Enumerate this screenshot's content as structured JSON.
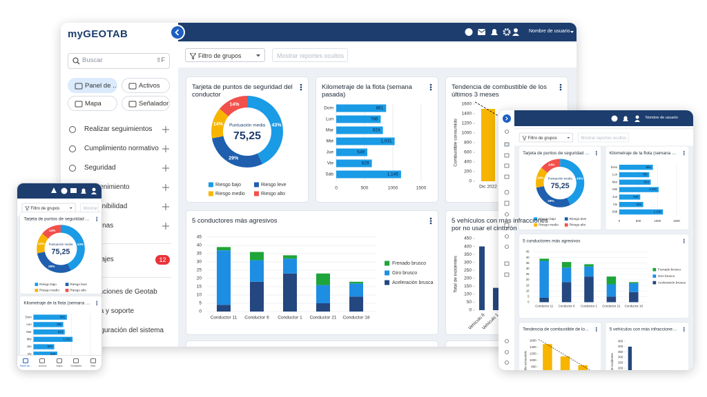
{
  "brand": "myGEOTAB",
  "sidebar": {
    "search": "Buscar",
    "shortcut": "⇧F",
    "shortcuts": [
      "Panel de ...",
      "Activos",
      "Mapa",
      "Señalador"
    ],
    "menu": [
      {
        "label": "Realizar seguimientos"
      },
      {
        "label": "Cumplimiento normativo"
      },
      {
        "label": "Seguridad"
      },
      {
        "label": "Mantenimiento"
      },
      {
        "label": "Sostenibilidad"
      },
      {
        "label": "Personas"
      },
      {
        "label": "Mensajes",
        "badge": 12
      },
      {
        "label": "Aplicaciones de Geotab"
      },
      {
        "label": "Ayuda y soporte"
      },
      {
        "label": "Configuración del sistema"
      }
    ]
  },
  "topbar": {
    "user": "Nombre de usuario"
  },
  "filters": {
    "groups": "Filtro de grupos",
    "hidden": "Mostrar reportes ocultos"
  },
  "phone_nav": [
    "Panel de...",
    "Activos",
    "Mapa",
    "Señalador",
    "Más"
  ],
  "chart_data": [
    {
      "type": "donut",
      "title": "Tarjeta de puntos de seguridad del conductor",
      "center_label": "Puntuación media",
      "center_value": "75,25",
      "categories": [
        "Riesgo bajo",
        "Riesgo leve",
        "Riesgo medio",
        "Riesgo alto"
      ],
      "values": [
        43,
        29,
        14,
        14
      ],
      "value_labels": [
        "43%",
        "29%",
        "14%",
        "14%"
      ],
      "colors": [
        "#1a9be6",
        "#1f5fae",
        "#f7b500",
        "#f2504b"
      ]
    },
    {
      "type": "hbar",
      "title": "Kilometraje de la flota (semana pasada)",
      "categories": [
        "Dom",
        "Lun",
        "Mar",
        "Mié",
        "Jue",
        "Vie",
        "Sáb"
      ],
      "values": [
        881,
        786,
        824,
        1031,
        549,
        629,
        1145
      ],
      "value_labels": [
        "881",
        "786",
        "824",
        "1,031",
        "549",
        "629",
        "1,145"
      ],
      "xlim": [
        0,
        1500
      ],
      "xticks": [
        0,
        500,
        1000,
        1500
      ],
      "color": "#1a9be6",
      "grid": true
    },
    {
      "type": "bar",
      "title": "Tendencia de combustible de los últimos 3 meses",
      "ylabel": "Combustible consumido",
      "categories": [
        "Dic 2022",
        null,
        null
      ],
      "values": [
        1500,
        1120,
        850
      ],
      "ylim": [
        0,
        1600
      ],
      "yticks": [
        0,
        200,
        400,
        600,
        800,
        1000,
        1200,
        1400,
        1600
      ],
      "color": "#f7b500",
      "trendline": true
    },
    {
      "type": "stacked",
      "title": "5 conductores más agresivos",
      "categories": [
        "Conductor 11",
        "Conductor 6",
        "Conductor 1",
        "Conductor 21",
        "Conductor 18"
      ],
      "series": [
        {
          "name": "Aceleración brusca",
          "color": "#25477f",
          "values": [
            4,
            18,
            23,
            5,
            9
          ]
        },
        {
          "name": "Giro brusco",
          "color": "#1e8ee3",
          "values": [
            33,
            13,
            9,
            11,
            8
          ]
        },
        {
          "name": "Frenado brusco",
          "color": "#1ea53a",
          "values": [
            2,
            5,
            2,
            7,
            1
          ]
        }
      ],
      "ylim": [
        0,
        45
      ],
      "yticks": [
        0,
        5,
        10,
        15,
        20,
        25,
        30,
        35,
        40,
        45
      ],
      "grid": true
    },
    {
      "type": "bar",
      "title": "5 vehículos con más infracciones por no usar el cinturón",
      "ylabel": "Total de incidentes",
      "categories": [
        "Vehículo 8",
        "Vehículo 1"
      ],
      "values": [
        400,
        140
      ],
      "ylim": [
        0,
        450
      ],
      "yticks": [
        0,
        50,
        100,
        150,
        200,
        250,
        300,
        350,
        400,
        450
      ],
      "color": "#25477f"
    }
  ]
}
